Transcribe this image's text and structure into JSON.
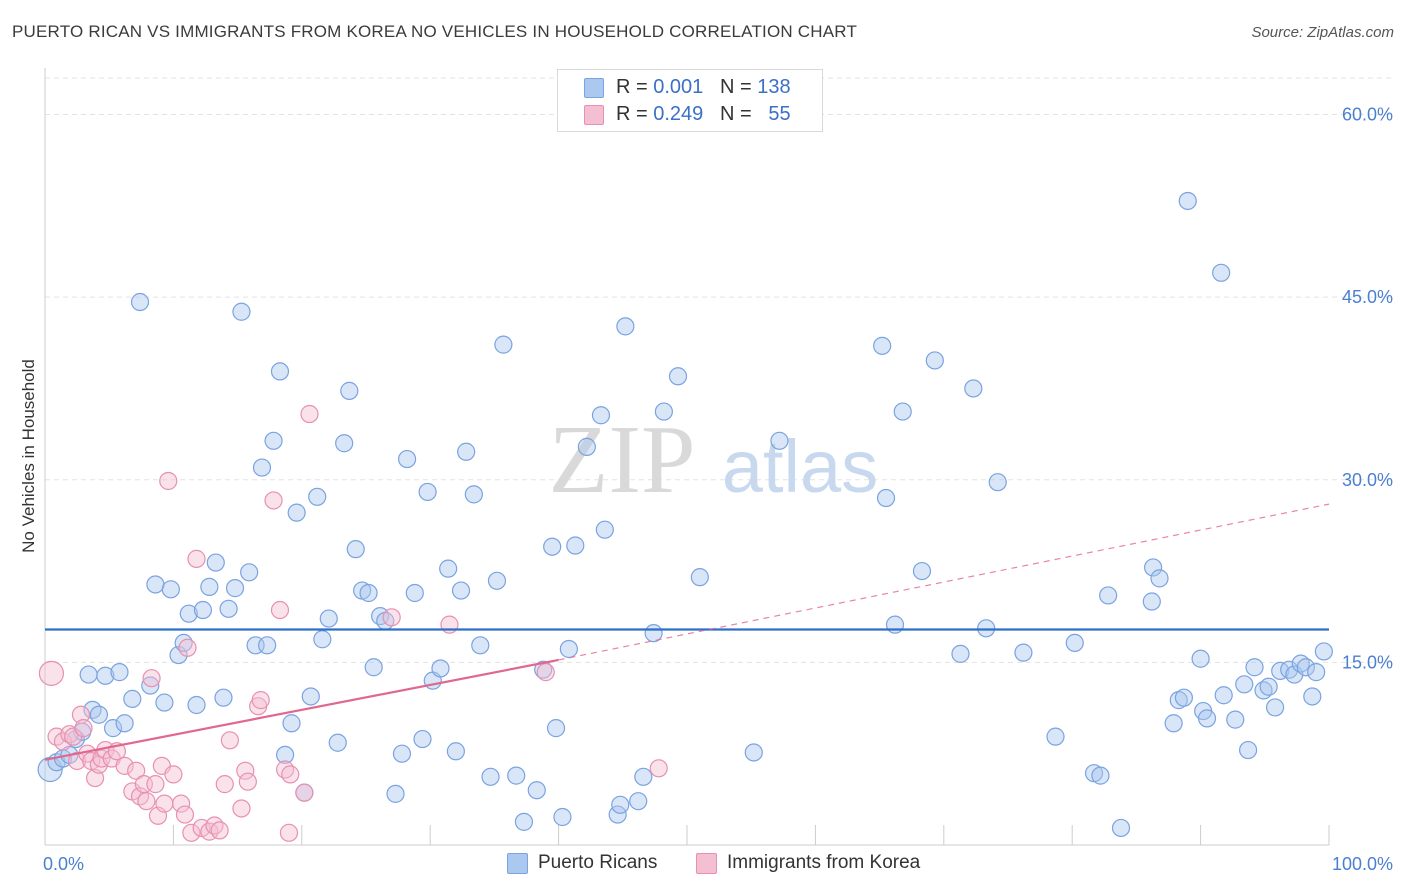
{
  "title": "PUERTO RICAN VS IMMIGRANTS FROM KOREA NO VEHICLES IN HOUSEHOLD CORRELATION CHART",
  "source": "Source: ZipAtlas.com",
  "watermark": {
    "zip": "ZIP",
    "atlas": "atlas"
  },
  "legend": [
    {
      "r_label": "R =",
      "r_value": "0.001",
      "n_label": "N =",
      "n_value": "138"
    },
    {
      "r_label": "R =",
      "r_value": "0.249",
      "n_label": "N =",
      "n_value": "55"
    }
  ],
  "chart_data": {
    "type": "scatter",
    "xlabel": "",
    "ylabel": "No Vehicles in Household",
    "xlim": [
      0,
      100
    ],
    "ylim": [
      0,
      63
    ],
    "x_tick_labels": [
      {
        "value": 0,
        "label": "0.0%"
      },
      {
        "value": 100,
        "label": "100.0%"
      }
    ],
    "y_tick_labels": [
      {
        "value": 15,
        "label": "15.0%"
      },
      {
        "value": 30,
        "label": "30.0%"
      },
      {
        "value": 45,
        "label": "45.0%"
      },
      {
        "value": 60,
        "label": "60.0%"
      }
    ],
    "grid": true,
    "legend_position": "top-center",
    "series": [
      {
        "name": "Puerto Ricans",
        "color": "#7aa3e0",
        "fill": "#aac8f0",
        "trend": {
          "x": [
            0,
            100
          ],
          "y": [
            17.7,
            17.7
          ],
          "style": "solid",
          "color": "#2f6fc8"
        },
        "points": [
          [
            0.4,
            6.2
          ],
          [
            0.9,
            6.8
          ],
          [
            1.4,
            7.1
          ],
          [
            1.9,
            7.4
          ],
          [
            2.4,
            8.7
          ],
          [
            2.9,
            9.3
          ],
          [
            3.4,
            14.0
          ],
          [
            3.7,
            11.1
          ],
          [
            4.2,
            10.7
          ],
          [
            4.7,
            13.9
          ],
          [
            5.3,
            9.6
          ],
          [
            5.8,
            14.2
          ],
          [
            6.2,
            10.0
          ],
          [
            6.8,
            12.0
          ],
          [
            7.4,
            44.6
          ],
          [
            8.2,
            13.1
          ],
          [
            8.6,
            21.4
          ],
          [
            9.3,
            11.7
          ],
          [
            9.8,
            21.0
          ],
          [
            10.4,
            15.6
          ],
          [
            10.8,
            16.6
          ],
          [
            11.2,
            19.0
          ],
          [
            11.8,
            11.5
          ],
          [
            12.3,
            19.3
          ],
          [
            12.8,
            21.2
          ],
          [
            13.3,
            23.2
          ],
          [
            13.9,
            12.1
          ],
          [
            14.3,
            19.4
          ],
          [
            14.8,
            21.1
          ],
          [
            15.3,
            43.8
          ],
          [
            15.9,
            22.4
          ],
          [
            16.4,
            16.4
          ],
          [
            16.9,
            31.0
          ],
          [
            17.3,
            16.4
          ],
          [
            17.8,
            33.2
          ],
          [
            18.3,
            38.9
          ],
          [
            18.7,
            7.4
          ],
          [
            19.2,
            10.0
          ],
          [
            19.6,
            27.3
          ],
          [
            20.2,
            4.3
          ],
          [
            20.7,
            12.2
          ],
          [
            21.2,
            28.6
          ],
          [
            21.6,
            16.9
          ],
          [
            22.1,
            18.6
          ],
          [
            22.8,
            8.4
          ],
          [
            23.3,
            33.0
          ],
          [
            23.7,
            37.3
          ],
          [
            24.2,
            24.3
          ],
          [
            24.7,
            20.9
          ],
          [
            25.2,
            20.7
          ],
          [
            25.6,
            14.6
          ],
          [
            26.1,
            18.8
          ],
          [
            26.5,
            18.4
          ],
          [
            27.3,
            4.2
          ],
          [
            27.8,
            7.5
          ],
          [
            28.2,
            31.7
          ],
          [
            28.8,
            20.7
          ],
          [
            29.4,
            8.7
          ],
          [
            29.8,
            29.0
          ],
          [
            30.2,
            13.5
          ],
          [
            30.8,
            14.5
          ],
          [
            31.4,
            22.7
          ],
          [
            32.0,
            7.7
          ],
          [
            32.4,
            20.9
          ],
          [
            32.8,
            32.3
          ],
          [
            33.4,
            28.8
          ],
          [
            33.9,
            16.4
          ],
          [
            34.7,
            5.6
          ],
          [
            35.2,
            21.7
          ],
          [
            35.7,
            41.1
          ],
          [
            36.7,
            5.7
          ],
          [
            37.3,
            1.9
          ],
          [
            38.3,
            4.5
          ],
          [
            38.8,
            14.4
          ],
          [
            39.5,
            24.5
          ],
          [
            39.8,
            9.6
          ],
          [
            40.3,
            2.3
          ],
          [
            40.8,
            16.1
          ],
          [
            41.3,
            24.6
          ],
          [
            42.2,
            32.7
          ],
          [
            43.3,
            35.3
          ],
          [
            43.6,
            25.9
          ],
          [
            44.6,
            2.5
          ],
          [
            44.8,
            3.3
          ],
          [
            45.2,
            42.6
          ],
          [
            46.2,
            3.6
          ],
          [
            46.6,
            5.6
          ],
          [
            47.4,
            17.4
          ],
          [
            48.2,
            35.6
          ],
          [
            49.3,
            38.5
          ],
          [
            51.0,
            22.0
          ],
          [
            55.2,
            7.6
          ],
          [
            57.2,
            33.2
          ],
          [
            65.2,
            41.0
          ],
          [
            65.5,
            28.5
          ],
          [
            66.2,
            18.1
          ],
          [
            66.8,
            35.6
          ],
          [
            68.3,
            22.5
          ],
          [
            69.3,
            39.8
          ],
          [
            71.3,
            15.7
          ],
          [
            72.3,
            37.5
          ],
          [
            73.3,
            17.8
          ],
          [
            74.2,
            29.8
          ],
          [
            76.2,
            15.8
          ],
          [
            78.7,
            8.9
          ],
          [
            80.2,
            16.6
          ],
          [
            81.7,
            5.9
          ],
          [
            82.2,
            5.7
          ],
          [
            82.8,
            20.5
          ],
          [
            83.8,
            1.4
          ],
          [
            86.2,
            20.0
          ],
          [
            86.3,
            22.8
          ],
          [
            86.8,
            21.9
          ],
          [
            87.9,
            10.0
          ],
          [
            88.3,
            11.9
          ],
          [
            88.7,
            12.1
          ],
          [
            89.0,
            52.9
          ],
          [
            90.0,
            15.3
          ],
          [
            90.2,
            11.0
          ],
          [
            90.5,
            10.4
          ],
          [
            91.6,
            47.0
          ],
          [
            91.8,
            12.3
          ],
          [
            92.7,
            10.3
          ],
          [
            93.4,
            13.2
          ],
          [
            93.7,
            7.8
          ],
          [
            94.2,
            14.6
          ],
          [
            94.9,
            12.7
          ],
          [
            95.3,
            13.0
          ],
          [
            95.8,
            11.3
          ],
          [
            96.2,
            14.3
          ],
          [
            96.9,
            14.4
          ],
          [
            97.3,
            14.0
          ],
          [
            97.8,
            14.9
          ],
          [
            98.2,
            14.6
          ],
          [
            98.7,
            12.2
          ],
          [
            99.0,
            14.2
          ],
          [
            99.6,
            15.9
          ]
        ]
      },
      {
        "name": "Immigrants from Korea",
        "color": "#e890b0",
        "fill": "#f5bfd3",
        "trend": {
          "solid": {
            "x": [
              0,
              40
            ],
            "y": [
              7.0,
              15.2
            ]
          },
          "dashed": {
            "x": [
              40,
              100
            ],
            "y": [
              15.2,
              28.0
            ]
          },
          "color": "#e0688f"
        },
        "points": [
          [
            0.5,
            14.1
          ],
          [
            0.9,
            8.9
          ],
          [
            1.4,
            8.5
          ],
          [
            1.9,
            9.1
          ],
          [
            2.2,
            8.9
          ],
          [
            2.5,
            6.9
          ],
          [
            2.8,
            10.7
          ],
          [
            3.0,
            9.6
          ],
          [
            3.3,
            7.5
          ],
          [
            3.6,
            6.9
          ],
          [
            3.9,
            5.5
          ],
          [
            4.2,
            6.6
          ],
          [
            4.4,
            7.1
          ],
          [
            4.7,
            7.8
          ],
          [
            5.2,
            7.1
          ],
          [
            5.6,
            7.7
          ],
          [
            6.2,
            6.5
          ],
          [
            6.8,
            4.4
          ],
          [
            7.1,
            6.1
          ],
          [
            7.4,
            4.0
          ],
          [
            7.7,
            5.0
          ],
          [
            7.9,
            3.6
          ],
          [
            8.3,
            13.7
          ],
          [
            8.6,
            5.0
          ],
          [
            8.8,
            2.4
          ],
          [
            9.1,
            6.5
          ],
          [
            9.3,
            3.4
          ],
          [
            9.6,
            29.9
          ],
          [
            10.0,
            5.8
          ],
          [
            10.6,
            3.4
          ],
          [
            10.9,
            2.5
          ],
          [
            11.1,
            16.2
          ],
          [
            11.4,
            1.0
          ],
          [
            11.8,
            23.5
          ],
          [
            12.2,
            1.4
          ],
          [
            12.8,
            1.1
          ],
          [
            13.2,
            1.6
          ],
          [
            13.6,
            1.2
          ],
          [
            14.0,
            5.0
          ],
          [
            14.4,
            8.6
          ],
          [
            15.3,
            3.0
          ],
          [
            15.6,
            6.1
          ],
          [
            15.8,
            5.2
          ],
          [
            16.6,
            11.4
          ],
          [
            16.8,
            11.9
          ],
          [
            17.8,
            28.3
          ],
          [
            18.3,
            19.3
          ],
          [
            18.7,
            6.2
          ],
          [
            19.0,
            1.0
          ],
          [
            19.1,
            5.8
          ],
          [
            20.2,
            4.3
          ],
          [
            20.6,
            35.4
          ],
          [
            27.0,
            18.7
          ],
          [
            31.5,
            18.1
          ],
          [
            39.0,
            14.2
          ],
          [
            47.8,
            6.3
          ]
        ]
      }
    ]
  }
}
